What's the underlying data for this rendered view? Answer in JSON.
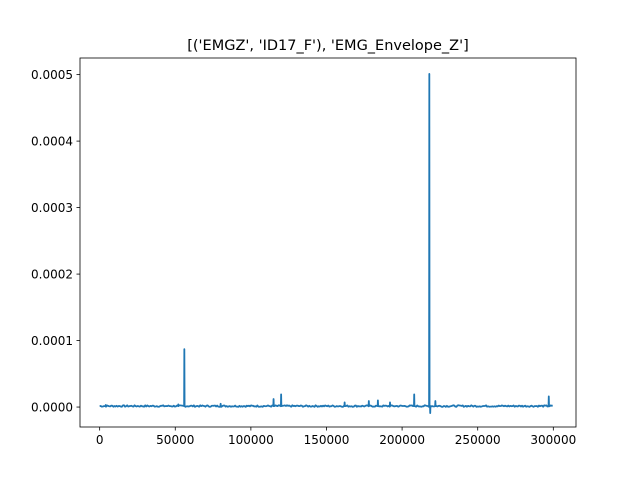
{
  "chart_data": {
    "type": "line",
    "title": "[('EMGZ', 'ID17_F'), 'EMG_Envelope_Z']",
    "xlabel": "",
    "ylabel": "",
    "xlim": [
      -13000,
      315000
    ],
    "ylim": [
      -3e-05,
      0.000525
    ],
    "x_ticks": [
      0,
      50000,
      100000,
      150000,
      200000,
      250000,
      300000
    ],
    "x_tick_labels": [
      "0",
      "50000",
      "100000",
      "150000",
      "200000",
      "250000",
      "300000"
    ],
    "y_ticks": [
      0.0,
      0.0001,
      0.0002,
      0.0003,
      0.0004,
      0.0005
    ],
    "y_tick_labels": [
      "0.0000",
      "0.0001",
      "0.0002",
      "0.0003",
      "0.0004",
      "0.0005"
    ],
    "grid": false,
    "legend": "none",
    "series": [
      {
        "color": "#1f77b4",
        "x_range": [
          0,
          300000
        ],
        "baseline": 1.5e-06,
        "noise": 1.2e-06,
        "features": [
          {
            "x": 4000,
            "y": 3e-06
          },
          {
            "x": 52000,
            "y": 4e-06
          },
          {
            "x": 56000,
            "y": 8.7e-05
          },
          {
            "x": 80000,
            "y": 5e-06
          },
          {
            "x": 115000,
            "y": 1.2e-05
          },
          {
            "x": 120000,
            "y": 1.9e-05
          },
          {
            "x": 162000,
            "y": 7e-06
          },
          {
            "x": 178000,
            "y": 9e-06
          },
          {
            "x": 184000,
            "y": 1e-05
          },
          {
            "x": 192000,
            "y": 7e-06
          },
          {
            "x": 208000,
            "y": 1.9e-05
          },
          {
            "x": 218000,
            "y": 0.000501
          },
          {
            "x": 218600,
            "y": -9e-06
          },
          {
            "x": 222000,
            "y": 9e-06
          },
          {
            "x": 297000,
            "y": 1.6e-05
          }
        ]
      }
    ]
  }
}
